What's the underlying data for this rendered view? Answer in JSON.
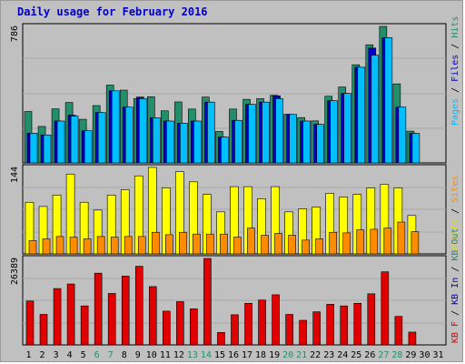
{
  "title": "Daily usage for February 2016",
  "colors": {
    "hits": "#238E6B",
    "files": "#0000CC",
    "pages": "#00BFFF",
    "visits": "#FFFF00",
    "sites": "#FF8C00",
    "kbin": "#0000C0",
    "kbout": "#238E6B",
    "kbf": "#E00000",
    "weekend_label": "#238E6B",
    "weekday_label": "#000000"
  },
  "chart_data": [
    {
      "type": "bar",
      "panel": "top",
      "max_label": "786",
      "ylim": [
        0,
        786
      ],
      "legend": [
        {
          "text": "Pages",
          "color": "#00BFFF"
        },
        {
          "text": " / ",
          "color": "#000000"
        },
        {
          "text": "Files",
          "color": "#0000CC"
        },
        {
          "text": " / ",
          "color": "#000000"
        },
        {
          "text": "Hits",
          "color": "#238E6B"
        }
      ],
      "categories": [
        "1",
        "2",
        "3",
        "4",
        "5",
        "6",
        "7",
        "8",
        "9",
        "10",
        "11",
        "12",
        "13",
        "14",
        "15",
        "16",
        "17",
        "18",
        "19",
        "20",
        "21",
        "22",
        "23",
        "24",
        "25",
        "26",
        "27",
        "28",
        "29"
      ],
      "series": [
        {
          "name": "Hits",
          "values": [
            296,
            210,
            311,
            348,
            251,
            330,
            448,
            419,
            370,
            381,
            300,
            351,
            310,
            379,
            181,
            310,
            366,
            370,
            389,
            280,
            261,
            242,
            384,
            437,
            565,
            680,
            786,
            455,
            183
          ]
        },
        {
          "name": "Files",
          "values": [
            171,
            161,
            241,
            275,
            185,
            290,
            415,
            321,
            379,
            260,
            241,
            229,
            241,
            350,
            149,
            245,
            337,
            350,
            386,
            279,
            241,
            222,
            358,
            400,
            551,
            661,
            721,
            321,
            170
          ]
        },
        {
          "name": "Pages",
          "values": [
            171,
            161,
            241,
            270,
            185,
            290,
            415,
            321,
            370,
            260,
            241,
            229,
            241,
            350,
            149,
            245,
            337,
            350,
            370,
            279,
            241,
            222,
            358,
            400,
            551,
            620,
            721,
            321,
            170
          ]
        }
      ]
    },
    {
      "type": "bar",
      "panel": "middle",
      "max_label": "144",
      "ylim": [
        0,
        144
      ],
      "legend": [
        {
          "text": "Visits",
          "color": "#E0E000"
        },
        {
          "text": " / ",
          "color": "#000000"
        },
        {
          "text": "Sites",
          "color": "#FF8C00"
        }
      ],
      "categories": [
        "1",
        "2",
        "3",
        "4",
        "5",
        "6",
        "7",
        "8",
        "9",
        "10",
        "11",
        "12",
        "13",
        "14",
        "15",
        "16",
        "17",
        "18",
        "19",
        "20",
        "21",
        "22",
        "23",
        "24",
        "25",
        "26",
        "27",
        "28",
        "29"
      ],
      "series": [
        {
          "name": "Visits",
          "values": [
            86,
            79,
            98,
            133,
            86,
            73,
            98,
            107,
            130,
            144,
            110,
            137,
            120,
            99,
            70,
            112,
            112,
            92,
            112,
            70,
            75,
            78,
            101,
            95,
            99,
            110,
            116,
            110,
            64
          ]
        },
        {
          "name": "Sites",
          "values": [
            22,
            25,
            29,
            28,
            25,
            29,
            28,
            29,
            29,
            36,
            32,
            36,
            33,
            33,
            33,
            28,
            43,
            31,
            34,
            31,
            23,
            25,
            36,
            35,
            40,
            41,
            43,
            53,
            37
          ]
        }
      ]
    },
    {
      "type": "bar",
      "panel": "bottom",
      "max_label": "26389",
      "ylim": [
        0,
        26389
      ],
      "legend": [
        {
          "text": "KB F",
          "color": "#E00000"
        },
        {
          "text": " / ",
          "color": "#000000"
        },
        {
          "text": "KB In",
          "color": "#0000C0"
        },
        {
          "text": " / ",
          "color": "#000000"
        },
        {
          "text": "KB Out",
          "color": "#238E6B"
        }
      ],
      "categories": [
        "1",
        "2",
        "3",
        "4",
        "5",
        "6",
        "7",
        "8",
        "9",
        "10",
        "11",
        "12",
        "13",
        "14",
        "15",
        "16",
        "17",
        "18",
        "19",
        "20",
        "21",
        "22",
        "23",
        "24",
        "25",
        "26",
        "27",
        "28",
        "29"
      ],
      "series": [
        {
          "name": "KB F",
          "values": [
            13400,
            9300,
            17200,
            18600,
            11900,
            21900,
            15700,
            21000,
            24000,
            17800,
            10300,
            13200,
            11000,
            26389,
            3800,
            9200,
            12700,
            13700,
            15300,
            9300,
            7500,
            10100,
            12400,
            11900,
            12700,
            15600,
            22300,
            8700,
            3900
          ]
        }
      ]
    }
  ],
  "x_labels": [
    {
      "text": "1",
      "weekend": false
    },
    {
      "text": "2",
      "weekend": false
    },
    {
      "text": "3",
      "weekend": false
    },
    {
      "text": "4",
      "weekend": false
    },
    {
      "text": "5",
      "weekend": false
    },
    {
      "text": "6",
      "weekend": true
    },
    {
      "text": "7",
      "weekend": true
    },
    {
      "text": "8",
      "weekend": false
    },
    {
      "text": "9",
      "weekend": false
    },
    {
      "text": "10",
      "weekend": false
    },
    {
      "text": "11",
      "weekend": false
    },
    {
      "text": "12",
      "weekend": false
    },
    {
      "text": "13",
      "weekend": true
    },
    {
      "text": "14",
      "weekend": true
    },
    {
      "text": "15",
      "weekend": false
    },
    {
      "text": "16",
      "weekend": false
    },
    {
      "text": "17",
      "weekend": false
    },
    {
      "text": "18",
      "weekend": false
    },
    {
      "text": "19",
      "weekend": false
    },
    {
      "text": "20",
      "weekend": true
    },
    {
      "text": "21",
      "weekend": true
    },
    {
      "text": "22",
      "weekend": false
    },
    {
      "text": "23",
      "weekend": false
    },
    {
      "text": "24",
      "weekend": false
    },
    {
      "text": "25",
      "weekend": false
    },
    {
      "text": "26",
      "weekend": false
    },
    {
      "text": "27",
      "weekend": true
    },
    {
      "text": "28",
      "weekend": true
    },
    {
      "text": "29",
      "weekend": false
    },
    {
      "text": "30",
      "weekend": false
    },
    {
      "text": "31",
      "weekend": false
    }
  ]
}
